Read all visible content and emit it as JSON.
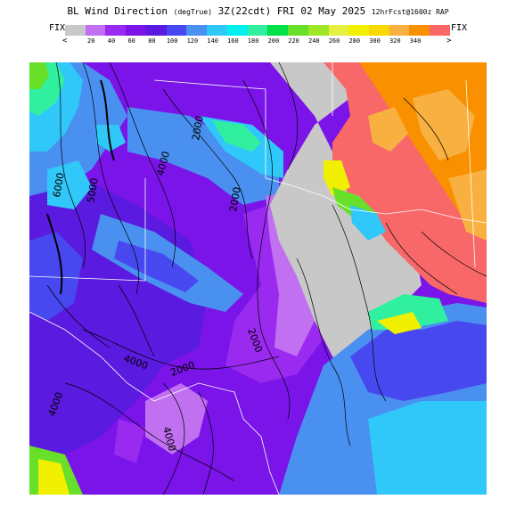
{
  "header": {
    "title_main": "BL Wind Direction",
    "title_units": "(degTrue)",
    "title_time": "3Z(22cdt) FRI 02 May 2025",
    "title_fcst": "12hrFcst@1600z RAP"
  },
  "legend": {
    "fix_left": "FIX",
    "fix_right": "FIX",
    "arrow_left": "<",
    "arrow_right": ">",
    "colors": [
      "#c8c8c8",
      "#c070f0",
      "#9a2af0",
      "#7a14e8",
      "#5a1ae0",
      "#4848f0",
      "#4a90f0",
      "#30c8f8",
      "#00f0f0",
      "#30f0a0",
      "#00e048",
      "#68e02a",
      "#a0e628",
      "#e6f040",
      "#f0f000",
      "#f8d800",
      "#f8b040",
      "#f89000",
      "#f86868"
    ],
    "ticks": [
      "20",
      "40",
      "60",
      "80",
      "100",
      "120",
      "140",
      "160",
      "180",
      "200",
      "220",
      "240",
      "260",
      "280",
      "300",
      "320",
      "340"
    ]
  },
  "map": {
    "contour_labels": [
      "6000",
      "5000",
      "4000",
      "2000",
      "2000",
      "4000",
      "2000",
      "4000",
      "4000",
      "2000"
    ],
    "colors": {
      "purple_dark": "#5a1ae0",
      "purple": "#7a14e8",
      "violet": "#9a2af0",
      "lavender": "#c070f0",
      "gray": "#c8c8c8",
      "blue": "#4a90f0",
      "blue_dark": "#4848f0",
      "cyan": "#30c8f8",
      "salmon": "#f86868",
      "orange": "#f89000",
      "light_orange": "#f8b040",
      "yellow": "#f0f000",
      "green": "#30f0a0",
      "lime": "#68e02a"
    }
  }
}
